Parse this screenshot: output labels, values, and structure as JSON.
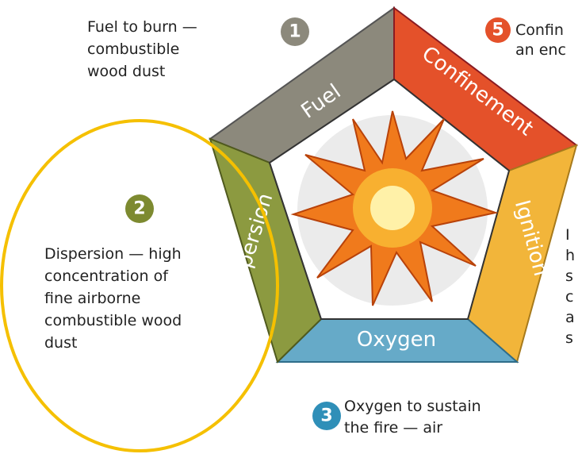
{
  "segments": {
    "fuel": "Fuel",
    "confinement": "Confinement",
    "ignition": "Ignition",
    "oxygen": "Oxygen",
    "dispersion": "Dispersion"
  },
  "items": [
    {
      "number": "1",
      "lines": [
        "Fuel to burn —",
        "combustible",
        "wood dust"
      ]
    },
    {
      "number": "2",
      "lines": [
        "Dispersion — high",
        "concentration of",
        "fine airborne",
        "combustible wood",
        "dust"
      ]
    },
    {
      "number": "3",
      "lines": [
        "Oxygen to sustain",
        "the fire — air"
      ]
    },
    {
      "number": "5",
      "lines": [
        "Confin",
        "an enc"
      ]
    },
    {
      "lines": [
        "I",
        "h",
        "s",
        "c",
        "a",
        "s"
      ]
    }
  ]
}
